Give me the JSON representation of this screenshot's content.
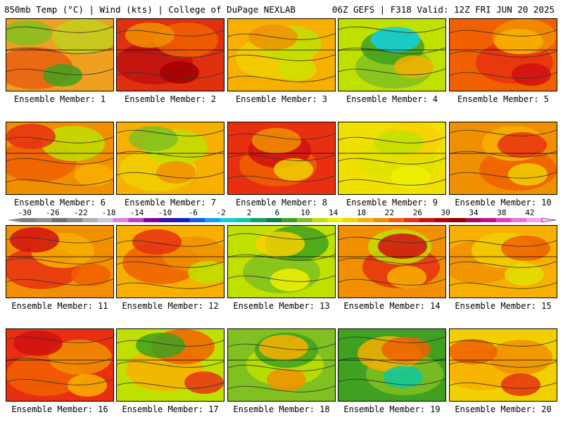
{
  "header": {
    "left": "850mb Temp (°C) | Wind (kts) | College of DuPage NEXLAB",
    "right": "06Z GEFS | F318 Valid: 12Z FRI JUN 20 2025"
  },
  "colorbar": {
    "ticks": [
      "-30",
      "-26",
      "-22",
      "-18",
      "-14",
      "-10",
      "-6",
      "-2",
      "2",
      "6",
      "10",
      "14",
      "18",
      "22",
      "26",
      "30",
      "34",
      "38",
      "42"
    ],
    "colors": [
      "#808080",
      "#909090",
      "#707070",
      "#8a8a8a",
      "#b0b0b0",
      "#c8c8d8",
      "#e080e0",
      "#c040c0",
      "#8000a0",
      "#4010a0",
      "#1020c0",
      "#1060e0",
      "#10a0f0",
      "#10d0e0",
      "#10c8a0",
      "#10a060",
      "#108040",
      "#40a020",
      "#80c020",
      "#c0e000",
      "#f0f000",
      "#f8d000",
      "#f8b000",
      "#f09000",
      "#f06000",
      "#e83010",
      "#d01010",
      "#b00010",
      "#900000",
      "#a01060",
      "#c01090",
      "#e040c0",
      "#f070e0",
      "#f8a0f0"
    ]
  },
  "panels": [
    {
      "label": "Ensemble Member: 1",
      "fill": [
        "#f0a020",
        "#e86010",
        "#c0d020",
        "#80c020",
        "#40a020"
      ]
    },
    {
      "label": "Ensemble Member: 2",
      "fill": [
        "#e03010",
        "#c01010",
        "#f06000",
        "#f09000",
        "#a00000"
      ]
    },
    {
      "label": "Ensemble Member: 3",
      "fill": [
        "#f8b000",
        "#f0d000",
        "#c0e000",
        "#f09000",
        "#d0e000"
      ]
    },
    {
      "label": "Ensemble Member: 4",
      "fill": [
        "#c0e000",
        "#80c020",
        "#40a020",
        "#10d0e0",
        "#f8b000"
      ]
    },
    {
      "label": "Ensemble Member: 5",
      "fill": [
        "#f06000",
        "#e83010",
        "#f09000",
        "#f8b000",
        "#d01010"
      ]
    },
    {
      "label": "Ensemble Member: 6",
      "fill": [
        "#f09000",
        "#f06000",
        "#c0e000",
        "#e83010",
        "#f8b000"
      ]
    },
    {
      "label": "Ensemble Member: 7",
      "fill": [
        "#f8b000",
        "#f0d000",
        "#c0e000",
        "#80c020",
        "#f09000"
      ]
    },
    {
      "label": "Ensemble Member: 8",
      "fill": [
        "#e83010",
        "#f06000",
        "#d01010",
        "#f09000",
        "#f0d000"
      ]
    },
    {
      "label": "Ensemble Member: 9",
      "fill": [
        "#f0e000",
        "#e0e000",
        "#f8d000",
        "#c0e000",
        "#f0f000"
      ]
    },
    {
      "label": "Ensemble Member: 10",
      "fill": [
        "#f09000",
        "#f06000",
        "#f8b000",
        "#e83010",
        "#f0d000"
      ]
    },
    {
      "label": "Ensemble Member: 11",
      "fill": [
        "#f09000",
        "#e83010",
        "#f8b000",
        "#d01010",
        "#f06000"
      ]
    },
    {
      "label": "Ensemble Member: 12",
      "fill": [
        "#f8b000",
        "#f06000",
        "#f09000",
        "#e83010",
        "#c0e000"
      ]
    },
    {
      "label": "Ensemble Member: 13",
      "fill": [
        "#c0e000",
        "#80c020",
        "#40a020",
        "#f8d000",
        "#f0f000"
      ]
    },
    {
      "label": "Ensemble Member: 14",
      "fill": [
        "#f09000",
        "#e83010",
        "#c0e000",
        "#d01010",
        "#f8b000"
      ]
    },
    {
      "label": "Ensemble Member: 15",
      "fill": [
        "#f8b000",
        "#f09000",
        "#f0d000",
        "#f06000",
        "#e0e000"
      ]
    },
    {
      "label": "Ensemble Member: 16",
      "fill": [
        "#e83010",
        "#f06000",
        "#f09000",
        "#d01010",
        "#f8b000"
      ]
    },
    {
      "label": "Ensemble Member: 17",
      "fill": [
        "#c0e000",
        "#f8b000",
        "#f06000",
        "#40a020",
        "#e83010"
      ]
    },
    {
      "label": "Ensemble Member: 18",
      "fill": [
        "#80c020",
        "#c0e000",
        "#40a020",
        "#f8b000",
        "#f09000"
      ]
    },
    {
      "label": "Ensemble Member: 19",
      "fill": [
        "#40a020",
        "#80c020",
        "#f8b000",
        "#f06000",
        "#10c8a0"
      ]
    },
    {
      "label": "Ensemble Member: 20",
      "fill": [
        "#f0d000",
        "#f8b000",
        "#f09000",
        "#f06000",
        "#e83010"
      ]
    }
  ],
  "chart_data": {
    "type": "heatmap",
    "title": "850mb Temp (°C) | Wind (kts) | College of DuPage NEXLAB",
    "subtitle": "06Z GEFS | F318 Valid: 12Z FRI JUN 20 2025",
    "colorbar_ticks": [
      -30,
      -26,
      -22,
      -18,
      -14,
      -10,
      -6,
      -2,
      2,
      6,
      10,
      14,
      18,
      22,
      26,
      30,
      34,
      38,
      42
    ],
    "members": [
      1,
      2,
      3,
      4,
      5,
      6,
      7,
      8,
      9,
      10,
      11,
      12,
      13,
      14,
      15,
      16,
      17,
      18,
      19,
      20
    ]
  }
}
